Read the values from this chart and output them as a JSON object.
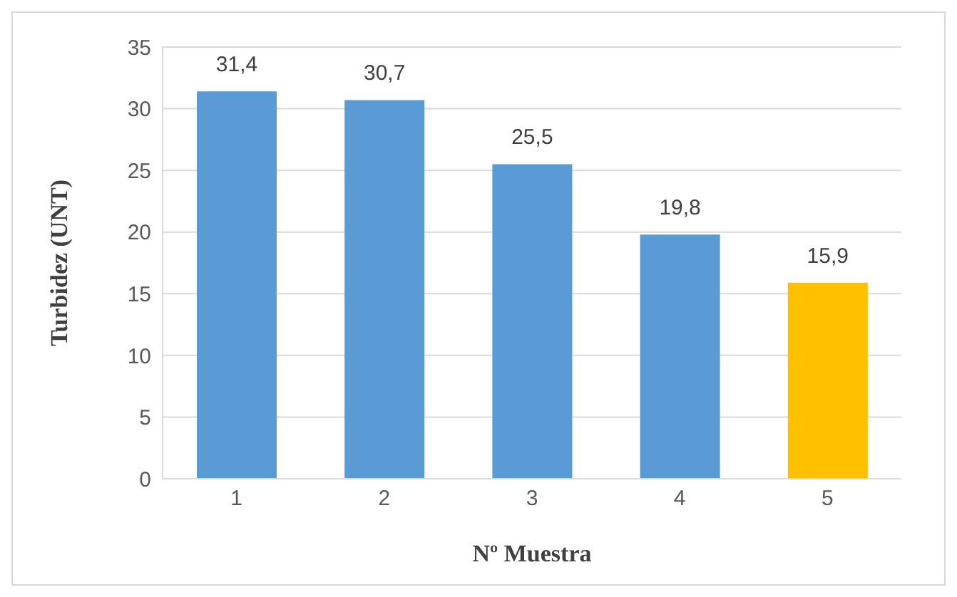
{
  "chart_data": {
    "type": "bar",
    "xlabel": "Nº Muestra",
    "ylabel": "Turbidez  (UNT)",
    "categories": [
      "1",
      "2",
      "3",
      "4",
      "5"
    ],
    "values": [
      31.4,
      30.7,
      25.5,
      19.8,
      15.9
    ],
    "colors": [
      "#5b9bd5",
      "#5b9bd5",
      "#5b9bd5",
      "#5b9bd5",
      "#ffc000"
    ],
    "value_labels": [
      "31,4",
      "30,7",
      "25,5",
      "19,8",
      "15,9"
    ],
    "ylim": [
      0,
      35
    ],
    "yticks": [
      0,
      5,
      10,
      15,
      20,
      25,
      30,
      35
    ],
    "grid": "y"
  }
}
